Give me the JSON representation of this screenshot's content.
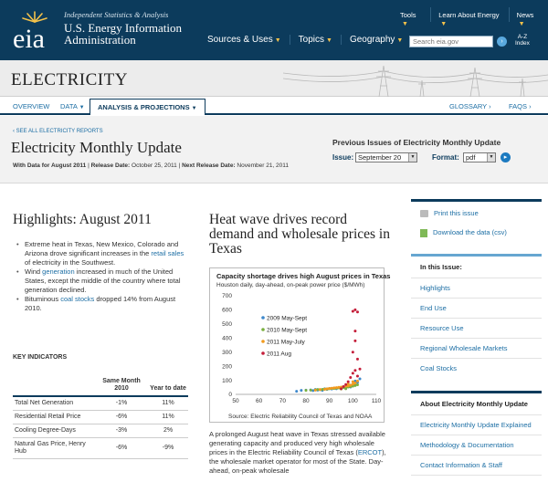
{
  "header": {
    "tagline": "Independent Statistics & Analysis",
    "logo_text": "eia",
    "agency_line1": "U.S. Energy Information",
    "agency_line2": "Administration",
    "top_links": [
      "Tools",
      "Learn About Energy",
      "News"
    ],
    "main_nav": [
      "Sources & Uses",
      "Topics",
      "Geography"
    ],
    "search_placeholder": "Search eia.gov",
    "az_line1": "A-Z",
    "az_line2": "Index"
  },
  "banner": {
    "title": "ELECTRICITY"
  },
  "subnav": {
    "overview": "OVERVIEW",
    "data": "DATA",
    "analysis": "ANALYSIS & PROJECTIONS",
    "glossary": "GLOSSARY ›",
    "faqs": "FAQS ›"
  },
  "title_area": {
    "see_all": "‹ SEE ALL ELECTRICITY REPORTS",
    "page_title": "Electricity Monthly Update",
    "with_data_label": "With Data for August 2011",
    "release_label": "Release Date:",
    "release_date": "October 25, 2011",
    "next_label": "Next Release Date:",
    "next_date": "November 21, 2011",
    "prev_title": "Previous Issues of Electricity Monthly Update",
    "issue_label": "Issue:",
    "issue_value": "September 20",
    "format_label": "Format:",
    "format_value": "pdf"
  },
  "highlights": {
    "title": "Highlights: August 2011",
    "items": [
      {
        "pre": "Extreme heat in Texas, New Mexico, Colorado and Arizona drove significant increases in the ",
        "link": "retail sales",
        "post": " of electricity in the Southwest."
      },
      {
        "pre": "Wind ",
        "link": "generation",
        "post": " increased in much of the United States, except the middle of the country where total generation declined."
      },
      {
        "pre": "Bituminous ",
        "link": "coal stocks",
        "post": " dropped 14% from August 2010."
      }
    ]
  },
  "key_indicators": {
    "title": "KEY INDICATORS",
    "col1": "Same Month 2010",
    "col2": "Year to date",
    "rows": [
      {
        "label": "Total Net Generation",
        "v1": "-1%",
        "v2": "11%"
      },
      {
        "label": "Residential Retail Price",
        "v1": "-6%",
        "v2": "11%"
      },
      {
        "label": "Cooling Degree-Days",
        "v1": "-3%",
        "v2": "2%"
      },
      {
        "label": "Natural Gas Price, Henry Hub",
        "v1": "-6%",
        "v2": "-9%"
      }
    ]
  },
  "article": {
    "title": "Heat wave drives record demand and wholesale prices in Texas",
    "body_pre": "A prolonged August heat wave in Texas stressed available generating capacity and produced very high wholesale prices in the Electric Reliability Council of Texas (",
    "body_link": "ERCOT",
    "body_post": "), the wholesale market operator for most of the State. Day-ahead, on-peak wholesale"
  },
  "chart_data": {
    "type": "scatter",
    "title": "Capacity shortage drives high August prices in Texas",
    "subtitle": "Houston daily, day-ahead, on-peak power price ($/MWh)",
    "source": "Source:  Electric Reliability Council of Texas and NOAA",
    "xlim": [
      50,
      110
    ],
    "ylim": [
      0,
      700
    ],
    "xticks": [
      50,
      60,
      70,
      80,
      90,
      100,
      110
    ],
    "yticks": [
      0,
      100,
      200,
      300,
      400,
      500,
      600,
      700
    ],
    "legend_position": "left",
    "series": [
      {
        "name": "2009 May-Sept",
        "color": "#3d88cc",
        "points": [
          [
            76,
            22
          ],
          [
            78,
            28
          ],
          [
            80,
            30
          ],
          [
            82,
            32
          ],
          [
            83,
            27
          ],
          [
            84,
            35
          ],
          [
            85,
            30
          ],
          [
            86,
            34
          ],
          [
            87,
            28
          ],
          [
            88,
            40
          ],
          [
            89,
            35
          ],
          [
            90,
            42
          ],
          [
            91,
            38
          ],
          [
            92,
            45
          ],
          [
            93,
            40
          ],
          [
            94,
            48
          ],
          [
            95,
            44
          ],
          [
            96,
            50
          ],
          [
            97,
            47
          ],
          [
            98,
            55
          ],
          [
            99,
            52
          ],
          [
            100,
            60
          ],
          [
            101,
            70
          ],
          [
            102,
            85
          ],
          [
            103,
            110
          ],
          [
            101,
            95
          ],
          [
            99,
            66
          ]
        ]
      },
      {
        "name": "2010 May-Sept",
        "color": "#7ab03f",
        "points": [
          [
            80,
            28
          ],
          [
            82,
            30
          ],
          [
            84,
            32
          ],
          [
            85,
            35
          ],
          [
            86,
            33
          ],
          [
            87,
            36
          ],
          [
            88,
            38
          ],
          [
            89,
            37
          ],
          [
            90,
            40
          ],
          [
            91,
            42
          ],
          [
            92,
            41
          ],
          [
            93,
            44
          ],
          [
            94,
            45
          ],
          [
            95,
            47
          ],
          [
            96,
            48
          ],
          [
            97,
            50
          ],
          [
            98,
            52
          ],
          [
            99,
            55
          ],
          [
            100,
            58
          ],
          [
            101,
            62
          ],
          [
            102,
            68
          ],
          [
            97,
            40
          ],
          [
            95,
            38
          ]
        ]
      },
      {
        "name": "2011 May-July",
        "color": "#f29a1e",
        "points": [
          [
            84,
            30
          ],
          [
            86,
            34
          ],
          [
            88,
            36
          ],
          [
            89,
            40
          ],
          [
            90,
            42
          ],
          [
            91,
            44
          ],
          [
            92,
            46
          ],
          [
            93,
            48
          ],
          [
            94,
            50
          ],
          [
            95,
            52
          ],
          [
            96,
            55
          ],
          [
            97,
            58
          ],
          [
            98,
            60
          ],
          [
            99,
            65
          ],
          [
            100,
            72
          ],
          [
            101,
            80
          ],
          [
            102,
            95
          ],
          [
            100,
            90
          ],
          [
            98,
            75
          ]
        ]
      },
      {
        "name": "2011 Aug",
        "color": "#c41e3a",
        "points": [
          [
            95,
            40
          ],
          [
            96,
            55
          ],
          [
            97,
            70
          ],
          [
            98,
            90
          ],
          [
            99,
            120
          ],
          [
            100,
            150
          ],
          [
            101,
            170
          ],
          [
            102,
            130
          ],
          [
            103,
            180
          ],
          [
            100,
            300
          ],
          [
            102,
            250
          ],
          [
            101,
            380
          ],
          [
            101,
            450
          ],
          [
            102,
            585
          ],
          [
            101,
            600
          ],
          [
            100,
            590
          ]
        ]
      }
    ]
  },
  "right_column": {
    "print_label": "Print this issue",
    "download_label": "Download the data (csv)",
    "in_issue_title": "In this Issue:",
    "in_issue_items": [
      "Highlights",
      "End Use",
      "Resource Use",
      "Regional Wholesale Markets",
      "Coal Stocks"
    ],
    "about_title": "About Electricity Monthly Update",
    "about_items": [
      "Electricity Monthly Update Explained",
      "Methodology & Documentation",
      "Contact Information & Staff"
    ]
  }
}
